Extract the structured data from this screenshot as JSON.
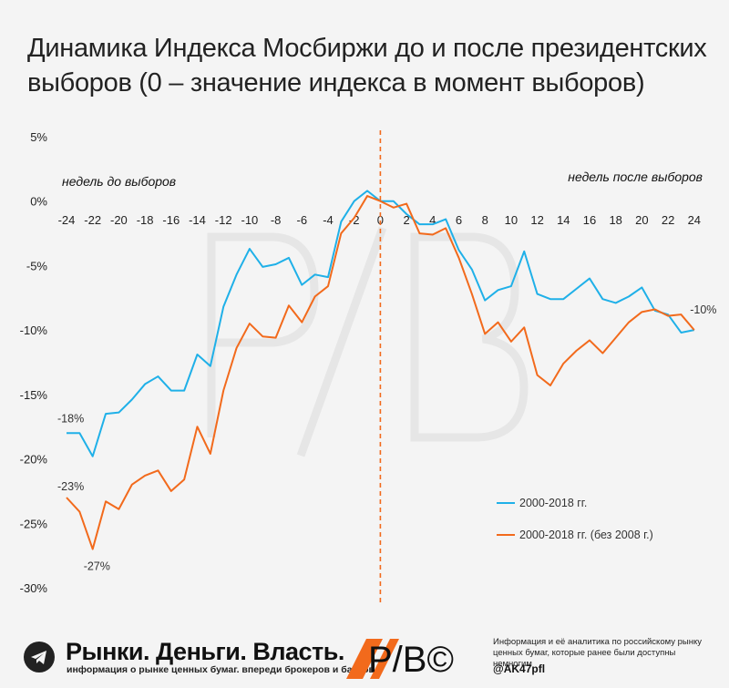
{
  "title": "Динамика Индекса Мосбиржи до и после президентских выборов (0 – значение индекса в момент выборов)",
  "colors": {
    "series1": "#1fb0e8",
    "series2": "#f26a1c",
    "divider": "#f26a1c",
    "background": "#f4f4f4"
  },
  "chart_data": {
    "type": "line",
    "x": [
      -24,
      -23,
      -22,
      -21,
      -20,
      -19,
      -18,
      -17,
      -16,
      -15,
      -14,
      -13,
      -12,
      -11,
      -10,
      -9,
      -8,
      -7,
      -6,
      -5,
      -4,
      -3,
      -2,
      -1,
      0,
      1,
      2,
      3,
      4,
      5,
      6,
      7,
      8,
      9,
      10,
      11,
      12,
      13,
      14,
      15,
      16,
      17,
      18,
      19,
      20,
      21,
      22,
      23,
      24
    ],
    "xlim": [
      -24.5,
      24.5
    ],
    "ylim": [
      -30,
      5
    ],
    "xticks": [
      "-24",
      "-22",
      "-20",
      "-18",
      "-16",
      "-14",
      "-12",
      "-10",
      "-8",
      "-6",
      "-4",
      "-2",
      "0",
      "2",
      "4",
      "6",
      "8",
      "10",
      "12",
      "14",
      "16",
      "18",
      "20",
      "22",
      "24"
    ],
    "yticks": [
      "5%",
      "0%",
      "-5%",
      "-10%",
      "-15%",
      "-20%",
      "-25%",
      "-30%"
    ],
    "phase_labels": {
      "before": "недель до выборов",
      "after": "недель после выборов"
    },
    "series": [
      {
        "name": "2000-2018 гг.",
        "values": [
          -18,
          -18,
          -19.8,
          -16.5,
          -16.4,
          -15.4,
          -14.2,
          -13.6,
          -14.7,
          -14.7,
          -11.9,
          -12.8,
          -8.2,
          -5.7,
          -3.7,
          -5.1,
          -4.9,
          -4.4,
          -6.5,
          -5.7,
          -5.9,
          -1.6,
          0,
          0.8,
          0,
          0,
          -1,
          -1.8,
          -1.8,
          -1.4,
          -3.8,
          -5.3,
          -7.7,
          -6.9,
          -6.6,
          -3.9,
          -7.2,
          -7.6,
          -7.6,
          -6.8,
          -6.0,
          -7.6,
          -7.9,
          -7.4,
          -6.7,
          -8.5,
          -8.8,
          -10.2,
          -10
        ]
      },
      {
        "name": "2000-2018 гг. (без 2008 г.)",
        "values": [
          -23,
          -24.1,
          -27,
          -23.3,
          -23.9,
          -22,
          -21.3,
          -20.9,
          -22.5,
          -21.6,
          -17.5,
          -19.6,
          -14.7,
          -11.4,
          -9.5,
          -10.5,
          -10.6,
          -8.1,
          -9.4,
          -7.4,
          -6.6,
          -2.5,
          -1.3,
          0.4,
          0,
          -0.5,
          -0.2,
          -2.5,
          -2.6,
          -2.1,
          -4.4,
          -7.2,
          -10.3,
          -9.4,
          -10.9,
          -9.8,
          -13.5,
          -14.3,
          -12.6,
          -11.6,
          -10.8,
          -11.8,
          -10.6,
          -9.4,
          -8.6,
          -8.4,
          -8.9,
          -8.8,
          -10
        ]
      }
    ],
    "annotations": [
      {
        "text": "-18%",
        "x": -24,
        "y": -18
      },
      {
        "text": "-23%",
        "x": -24,
        "y": -23
      },
      {
        "text": "-27%",
        "x": -22,
        "y": -27
      },
      {
        "text": "-10%",
        "x": 24,
        "y": -10
      }
    ],
    "legend_position": "bottom-right"
  },
  "footer": {
    "brand": "Рынки. Деньги. Власть.",
    "tagline": "информация о рынке ценных бумаг. впереди брокеров и банков.",
    "logo_text": "Р/В©",
    "info": "Информация и её аналитика по российскому рынку ценных бумаг, которые ранее были доступны немногим",
    "handle": "@AK47pfl"
  }
}
